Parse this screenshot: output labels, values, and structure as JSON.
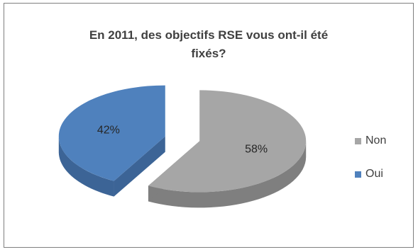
{
  "chart_data": {
    "type": "pie",
    "title": "En 2011, des objectifs RSE vous ont-il été\nfixés?",
    "slices": [
      {
        "label": "Non",
        "value": 58,
        "display": "58%",
        "color": "#a6a6a6",
        "side_color": "#7f7f7f"
      },
      {
        "label": "Oui",
        "value": 42,
        "display": "42%",
        "color": "#4f81bd",
        "side_color": "#3c6496"
      }
    ],
    "legend_position": "right",
    "exploded": true,
    "style": "3d"
  }
}
